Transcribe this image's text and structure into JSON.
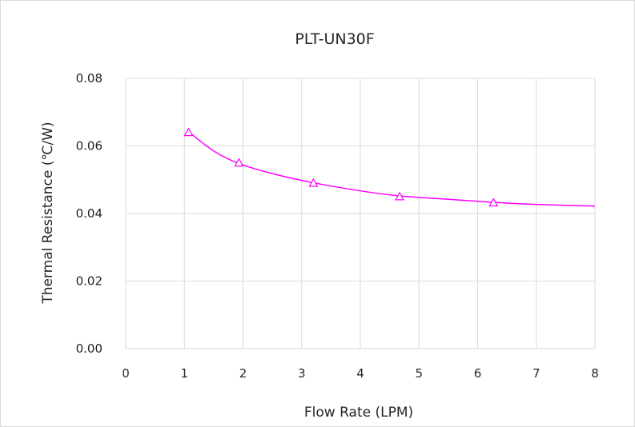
{
  "chart_data": {
    "type": "scatter",
    "title": "PLT-UN30F",
    "xlabel": "Flow Rate (LPM)",
    "ylabel": "Thermal Resistance (℃/W)",
    "xlim": [
      0,
      8
    ],
    "ylim": [
      0,
      0.08
    ],
    "x_ticks": [
      0,
      1,
      2,
      3,
      4,
      5,
      6,
      7,
      8
    ],
    "y_ticks": [
      0.0,
      0.02,
      0.04,
      0.06,
      0.08
    ],
    "x_tick_labels": [
      "0",
      "1",
      "2",
      "3",
      "4",
      "5",
      "6",
      "7",
      "8"
    ],
    "y_tick_labels": [
      "0.00",
      "0.02",
      "0.04",
      "0.06",
      "0.08"
    ],
    "grid": true,
    "legend": "none",
    "series": [
      {
        "color": "#ff00ff",
        "marker": "triangle-open",
        "x": [
          1.07,
          1.93,
          3.2,
          4.67,
          6.27
        ],
        "y": [
          0.064,
          0.055,
          0.049,
          0.045,
          0.0432
        ]
      }
    ],
    "trendline": {
      "color": "#ff00ff",
      "x": [
        1.07,
        1.5,
        1.93,
        2.5,
        3.2,
        4.0,
        4.67,
        5.5,
        6.27,
        7.0,
        8.0
      ],
      "y": [
        0.0642,
        0.0585,
        0.0548,
        0.0518,
        0.0491,
        0.0467,
        0.0452,
        0.0442,
        0.0433,
        0.0427,
        0.0422
      ]
    }
  }
}
